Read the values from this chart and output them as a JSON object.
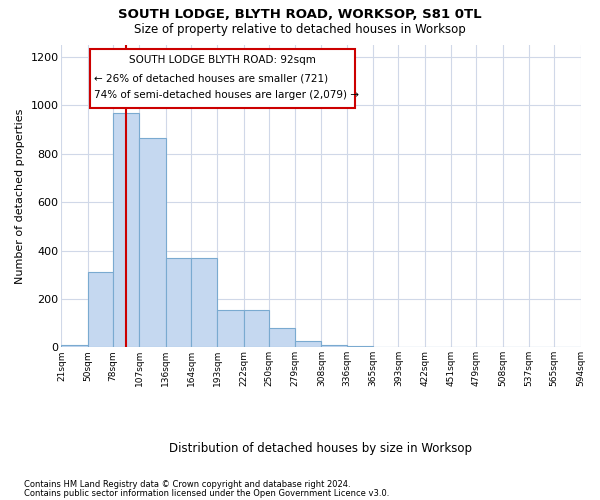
{
  "title": "SOUTH LODGE, BLYTH ROAD, WORKSOP, S81 0TL",
  "subtitle": "Size of property relative to detached houses in Worksop",
  "xlabel": "Distribution of detached houses by size in Worksop",
  "ylabel": "Number of detached properties",
  "footnote1": "Contains HM Land Registry data © Crown copyright and database right 2024.",
  "footnote2": "Contains public sector information licensed under the Open Government Licence v3.0.",
  "annotation_line1": "SOUTH LODGE BLYTH ROAD: 92sqm",
  "annotation_line2": "← 26% of detached houses are smaller (721)",
  "annotation_line3": "74% of semi-detached houses are larger (2,079) →",
  "property_size_sqm": 92,
  "bin_edges": [
    21,
    50,
    78,
    107,
    136,
    164,
    193,
    222,
    250,
    279,
    308,
    336,
    365,
    393,
    422,
    451,
    479,
    508,
    537,
    565,
    594
  ],
  "bin_counts": [
    10,
    310,
    970,
    865,
    370,
    370,
    155,
    155,
    80,
    25,
    10,
    5,
    2,
    2,
    1,
    0,
    0,
    1,
    0,
    0
  ],
  "bar_color": "#c5d8f0",
  "bar_edge_color": "#7aaad0",
  "line_color": "#cc0000",
  "annotation_box_color": "#cc0000",
  "background_color": "#ffffff",
  "grid_color": "#d0d8e8",
  "ylim": [
    0,
    1250
  ],
  "yticks": [
    0,
    200,
    400,
    600,
    800,
    1000,
    1200
  ]
}
